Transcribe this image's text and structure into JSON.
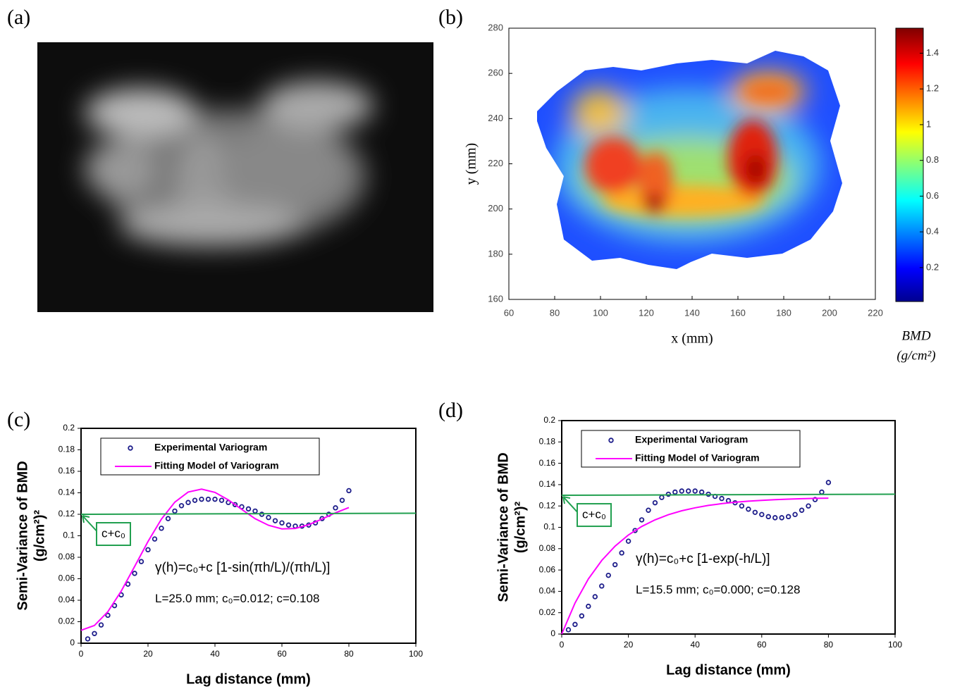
{
  "chart_data": [
    {
      "type": "image",
      "panel_label": "(a)"
    },
    {
      "type": "heatmap",
      "panel_label": "(b)",
      "xlabel": "x (mm)",
      "ylabel": "y (mm)",
      "xlim": [
        60,
        220
      ],
      "xticks": [
        60,
        80,
        100,
        120,
        140,
        160,
        180,
        200,
        220
      ],
      "ylim": [
        160,
        280
      ],
      "yticks": [
        160,
        180,
        200,
        220,
        240,
        260,
        280
      ],
      "colorbar": {
        "label": [
          "BMD",
          "(g/cm²)"
        ],
        "clim": [
          0.01,
          1.54
        ],
        "ticks": [
          0.2,
          0.4,
          0.6,
          0.8,
          1,
          1.2,
          1.4
        ],
        "colormap": "jet"
      }
    },
    {
      "type": "line",
      "panel_label": "(c)",
      "xlabel": "Lag distance (mm)",
      "ylabel": [
        "Semi-Variance of BMD",
        "(g/cm²)²"
      ],
      "xlim": [
        0,
        100
      ],
      "xticks": [
        0,
        20,
        40,
        60,
        80,
        100
      ],
      "ylim": [
        0,
        0.2
      ],
      "yticks": [
        0,
        0.02,
        0.04,
        0.06,
        0.08,
        0.1,
        0.12,
        0.14,
        0.16,
        0.18,
        0.2
      ],
      "legend": "upper left",
      "series": [
        {
          "name": "Experimental Variogram",
          "style": "markers",
          "color": "#1c1c8a",
          "x": [
            2,
            4,
            6,
            8,
            10,
            12,
            14,
            16,
            18,
            20,
            22,
            24,
            26,
            28,
            30,
            32,
            34,
            36,
            38,
            40,
            42,
            44,
            46,
            48,
            50,
            52,
            54,
            56,
            58,
            60,
            62,
            64,
            66,
            68,
            70,
            72,
            74,
            76,
            78,
            80
          ],
          "values": [
            0.004,
            0.009,
            0.017,
            0.026,
            0.035,
            0.045,
            0.055,
            0.065,
            0.076,
            0.087,
            0.097,
            0.107,
            0.116,
            0.123,
            0.128,
            0.131,
            0.133,
            0.134,
            0.134,
            0.134,
            0.133,
            0.131,
            0.129,
            0.127,
            0.125,
            0.123,
            0.12,
            0.117,
            0.114,
            0.112,
            0.11,
            0.109,
            0.109,
            0.11,
            0.112,
            0.116,
            0.12,
            0.126,
            0.133,
            0.142
          ]
        },
        {
          "name": "Fitting Model of Variogram",
          "style": "line",
          "color": "#ff00ff",
          "x": [
            0,
            4,
            8,
            12,
            16,
            20,
            24,
            28,
            32,
            36,
            40,
            44,
            48,
            52,
            56,
            60,
            64,
            68,
            72,
            76,
            80
          ],
          "values": [
            0.012,
            0.0165,
            0.0293,
            0.0485,
            0.0714,
            0.0947,
            0.1155,
            0.1313,
            0.1407,
            0.1434,
            0.1404,
            0.1334,
            0.1245,
            0.1159,
            0.1098,
            0.1064,
            0.1068,
            0.1103,
            0.1156,
            0.1214,
            0.1263
          ]
        },
        {
          "style": "line",
          "color": "#22a050",
          "x": [
            0,
            100
          ],
          "values": [
            0.12,
            0.121
          ]
        }
      ],
      "annotation": "c+c₀",
      "equation": "γ(h)=c₀+c [1-sin(πh/L)/(πh/L)]",
      "parameters": "L=25.0 mm; c₀=0.012; c=0.108"
    },
    {
      "type": "line",
      "panel_label": "(d)",
      "xlabel": "Lag distance (mm)",
      "ylabel": [
        "Semi-Variance of BMD",
        "(g/cm²)²"
      ],
      "xlim": [
        0,
        100
      ],
      "xticks": [
        0,
        20,
        40,
        60,
        80,
        100
      ],
      "ylim": [
        0,
        0.2
      ],
      "yticks": [
        0,
        0.02,
        0.04,
        0.06,
        0.08,
        0.1,
        0.12,
        0.14,
        0.16,
        0.18,
        0.2
      ],
      "legend": "upper left",
      "series": [
        {
          "name": "Experimental Variogram",
          "style": "markers",
          "color": "#1c1c8a",
          "x": [
            2,
            4,
            6,
            8,
            10,
            12,
            14,
            16,
            18,
            20,
            22,
            24,
            26,
            28,
            30,
            32,
            34,
            36,
            38,
            40,
            42,
            44,
            46,
            48,
            50,
            52,
            54,
            56,
            58,
            60,
            62,
            64,
            66,
            68,
            70,
            72,
            74,
            76,
            78,
            80
          ],
          "values": [
            0.004,
            0.009,
            0.017,
            0.026,
            0.035,
            0.045,
            0.055,
            0.065,
            0.076,
            0.087,
            0.097,
            0.107,
            0.116,
            0.123,
            0.128,
            0.131,
            0.133,
            0.134,
            0.134,
            0.134,
            0.133,
            0.131,
            0.129,
            0.127,
            0.125,
            0.123,
            0.12,
            0.117,
            0.114,
            0.112,
            0.11,
            0.109,
            0.109,
            0.11,
            0.112,
            0.116,
            0.12,
            0.126,
            0.133,
            0.142
          ]
        },
        {
          "name": "Fitting Model of Variogram",
          "style": "line",
          "color": "#ff00ff",
          "x": [
            0,
            4,
            8,
            12,
            16,
            20,
            24,
            28,
            32,
            36,
            40,
            44,
            48,
            52,
            56,
            60,
            64,
            68,
            72,
            76,
            80
          ],
          "values": [
            0,
            0.0291,
            0.0516,
            0.069,
            0.0824,
            0.0928,
            0.1008,
            0.107,
            0.1118,
            0.1155,
            0.1183,
            0.1205,
            0.1222,
            0.1235,
            0.1245,
            0.1253,
            0.1259,
            0.1264,
            0.1268,
            0.1271,
            0.1273
          ]
        },
        {
          "style": "line",
          "color": "#22a050",
          "x": [
            0,
            100
          ],
          "values": [
            0.13,
            0.131
          ]
        }
      ],
      "annotation": "c+c₀",
      "equation": "γ(h)=c₀+c [1-exp(-h/L)]",
      "parameters": "L=15.5 mm; c₀=0.000; c=0.128"
    }
  ]
}
